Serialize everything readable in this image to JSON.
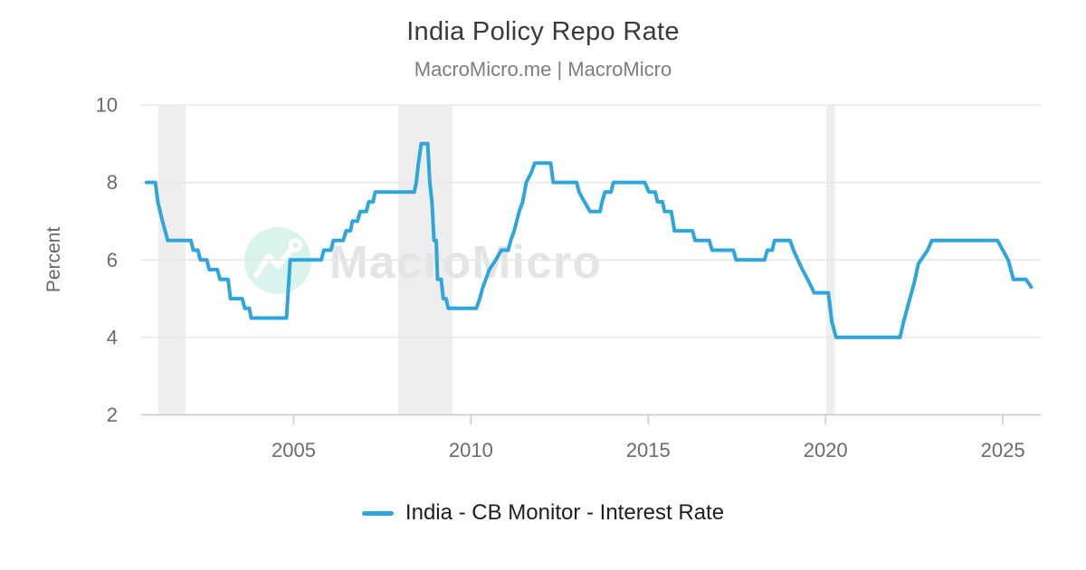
{
  "header": {
    "title": "India Policy Repo Rate",
    "subtitle": "MacroMicro.me | MacroMicro"
  },
  "legend": {
    "label": "India - CB Monitor - Interest Rate"
  },
  "watermark": {
    "text": "MacroMicro",
    "logo": "macromicro-mountain-logo"
  },
  "colors": {
    "series": "#2ea6db",
    "grid": "#e7e7e7",
    "axis": "#c9c9c9",
    "tick_label": "#6b6b6b",
    "title": "#3a3a3a",
    "subtitle": "#7d7d7d",
    "recession_band": "#eeeeee",
    "legend_text": "#1e1e1e",
    "watermark_circle": "#daf3ed",
    "watermark_text": "#e4e4e4"
  },
  "chart_data": {
    "type": "line",
    "title": "India Policy Repo Rate",
    "subtitle": "MacroMicro.me | MacroMicro",
    "xlabel": "",
    "ylabel": "Percent",
    "ylim": [
      2,
      10
    ],
    "xlim": [
      2000.7,
      2026.07
    ],
    "y_ticks": [
      10,
      8,
      6,
      4,
      2
    ],
    "x_ticks": [
      2005,
      2010,
      2015,
      2020,
      2025
    ],
    "grid": true,
    "legend_position": "bottom",
    "recession_bands": [
      [
        2001.18,
        2001.95
      ],
      [
        2007.95,
        2009.48
      ],
      [
        2020.02,
        2020.27
      ]
    ],
    "series": [
      {
        "name": "India - CB Monitor - Interest Rate",
        "color": "#2ea6db",
        "unit": "Percent",
        "points": [
          [
            2000.85,
            8.0
          ],
          [
            2001.1,
            8.0
          ],
          [
            2001.17,
            7.5
          ],
          [
            2001.3,
            7.0
          ],
          [
            2001.45,
            6.5
          ],
          [
            2002.1,
            6.5
          ],
          [
            2002.17,
            6.25
          ],
          [
            2002.3,
            6.25
          ],
          [
            2002.37,
            6.0
          ],
          [
            2002.55,
            6.0
          ],
          [
            2002.62,
            5.75
          ],
          [
            2002.85,
            5.75
          ],
          [
            2002.92,
            5.5
          ],
          [
            2003.15,
            5.5
          ],
          [
            2003.22,
            5.0
          ],
          [
            2003.55,
            5.0
          ],
          [
            2003.62,
            4.75
          ],
          [
            2003.75,
            4.75
          ],
          [
            2003.8,
            4.5
          ],
          [
            2004.8,
            4.5
          ],
          [
            2004.9,
            6.0
          ],
          [
            2005.78,
            6.0
          ],
          [
            2005.85,
            6.25
          ],
          [
            2006.05,
            6.25
          ],
          [
            2006.12,
            6.5
          ],
          [
            2006.4,
            6.5
          ],
          [
            2006.48,
            6.75
          ],
          [
            2006.6,
            6.75
          ],
          [
            2006.66,
            7.0
          ],
          [
            2006.8,
            7.0
          ],
          [
            2006.88,
            7.25
          ],
          [
            2007.05,
            7.25
          ],
          [
            2007.12,
            7.5
          ],
          [
            2007.24,
            7.5
          ],
          [
            2007.3,
            7.75
          ],
          [
            2008.4,
            7.75
          ],
          [
            2008.46,
            8.0
          ],
          [
            2008.52,
            8.5
          ],
          [
            2008.6,
            9.0
          ],
          [
            2008.78,
            9.0
          ],
          [
            2008.84,
            8.0
          ],
          [
            2008.9,
            7.5
          ],
          [
            2008.96,
            6.5
          ],
          [
            2009.02,
            6.5
          ],
          [
            2009.06,
            5.5
          ],
          [
            2009.16,
            5.5
          ],
          [
            2009.22,
            5.0
          ],
          [
            2009.3,
            5.0
          ],
          [
            2009.36,
            4.75
          ],
          [
            2010.15,
            4.75
          ],
          [
            2010.25,
            5.0
          ],
          [
            2010.32,
            5.25
          ],
          [
            2010.52,
            5.75
          ],
          [
            2010.7,
            6.0
          ],
          [
            2010.86,
            6.25
          ],
          [
            2011.05,
            6.25
          ],
          [
            2011.12,
            6.5
          ],
          [
            2011.22,
            6.75
          ],
          [
            2011.36,
            7.25
          ],
          [
            2011.46,
            7.5
          ],
          [
            2011.56,
            8.0
          ],
          [
            2011.7,
            8.25
          ],
          [
            2011.8,
            8.5
          ],
          [
            2012.25,
            8.5
          ],
          [
            2012.32,
            8.0
          ],
          [
            2012.98,
            8.0
          ],
          [
            2013.05,
            7.75
          ],
          [
            2013.2,
            7.5
          ],
          [
            2013.36,
            7.25
          ],
          [
            2013.64,
            7.25
          ],
          [
            2013.7,
            7.5
          ],
          [
            2013.78,
            7.75
          ],
          [
            2013.95,
            7.75
          ],
          [
            2014.02,
            8.0
          ],
          [
            2014.9,
            8.0
          ],
          [
            2015.02,
            7.75
          ],
          [
            2015.2,
            7.75
          ],
          [
            2015.26,
            7.5
          ],
          [
            2015.4,
            7.5
          ],
          [
            2015.46,
            7.25
          ],
          [
            2015.65,
            7.25
          ],
          [
            2015.74,
            6.75
          ],
          [
            2016.25,
            6.75
          ],
          [
            2016.32,
            6.5
          ],
          [
            2016.72,
            6.5
          ],
          [
            2016.8,
            6.25
          ],
          [
            2017.4,
            6.25
          ],
          [
            2017.48,
            6.0
          ],
          [
            2018.28,
            6.0
          ],
          [
            2018.36,
            6.25
          ],
          [
            2018.5,
            6.25
          ],
          [
            2018.56,
            6.5
          ],
          [
            2019.0,
            6.5
          ],
          [
            2019.1,
            6.25
          ],
          [
            2019.22,
            6.0
          ],
          [
            2019.35,
            5.75
          ],
          [
            2019.55,
            5.4
          ],
          [
            2019.68,
            5.15
          ],
          [
            2020.08,
            5.15
          ],
          [
            2020.18,
            4.4
          ],
          [
            2020.3,
            4.0
          ],
          [
            2022.1,
            4.0
          ],
          [
            2022.2,
            4.4
          ],
          [
            2022.35,
            4.9
          ],
          [
            2022.5,
            5.4
          ],
          [
            2022.62,
            5.9
          ],
          [
            2022.88,
            6.25
          ],
          [
            2023.0,
            6.5
          ],
          [
            2024.85,
            6.5
          ],
          [
            2025.0,
            6.25
          ],
          [
            2025.15,
            6.0
          ],
          [
            2025.3,
            5.5
          ],
          [
            2025.65,
            5.5
          ],
          [
            2025.8,
            5.3
          ]
        ]
      }
    ]
  }
}
